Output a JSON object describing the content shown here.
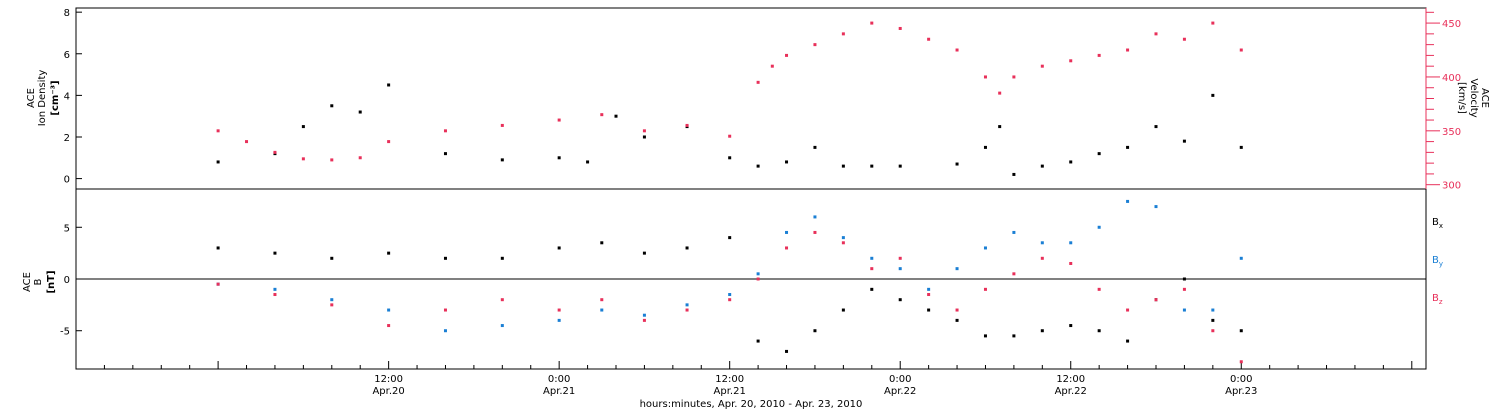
{
  "colors": {
    "black": "#000000",
    "pink": "#e8305a",
    "blue": "#1a7fd4"
  },
  "chart_data": [
    {
      "type": "scatter",
      "panel": "top",
      "xaxis": {
        "start": "2010-04-19 14:00",
        "end": "2010-04-23 13:00",
        "tick_labels": [
          {
            "time": "2010-04-20 12:00",
            "hm": "12:00",
            "date": "Apr.20"
          },
          {
            "time": "2010-04-21 00:00",
            "hm": "0:00",
            "date": "Apr.21"
          },
          {
            "time": "2010-04-21 12:00",
            "hm": "12:00",
            "date": "Apr.21"
          },
          {
            "time": "2010-04-22 00:00",
            "hm": "0:00",
            "date": "Apr.22"
          },
          {
            "time": "2010-04-22 12:00",
            "hm": "12:00",
            "date": "Apr.22"
          },
          {
            "time": "2010-04-23 00:00",
            "hm": "0:00",
            "date": "Apr.23"
          }
        ],
        "label": "hours:minutes, Apr. 20, 2010 - Apr. 23, 2010"
      },
      "y_left": {
        "label_line1": "ACE",
        "label_line2": "Ion Density",
        "unit": "[cm⁻³]",
        "range": [
          -0.5,
          8.2
        ],
        "ticks": [
          0,
          2,
          4,
          6,
          8
        ]
      },
      "y_right": {
        "label_line1": "ACE",
        "label_line2": "Velocity",
        "unit": "[km/s]",
        "range": [
          296,
          464
        ],
        "ticks": [
          300,
          350,
          400,
          450
        ]
      },
      "series": [
        {
          "color": "black",
          "axis": "left",
          "x": [
            "2010-04-20 00:00",
            "2010-04-20 04:00",
            "2010-04-20 06:00",
            "2010-04-20 08:00",
            "2010-04-20 10:00",
            "2010-04-20 12:00",
            "2010-04-20 16:00",
            "2010-04-20 20:00",
            "2010-04-21 00:00",
            "2010-04-21 02:00",
            "2010-04-21 04:00",
            "2010-04-21 06:00",
            "2010-04-21 09:00",
            "2010-04-21 12:00",
            "2010-04-21 14:00",
            "2010-04-21 16:00",
            "2010-04-21 18:00",
            "2010-04-21 20:00",
            "2010-04-21 22:00",
            "2010-04-22 00:00",
            "2010-04-22 04:00",
            "2010-04-22 06:00",
            "2010-04-22 07:00",
            "2010-04-22 08:00",
            "2010-04-22 10:00",
            "2010-04-22 12:00",
            "2010-04-22 14:00",
            "2010-04-22 16:00",
            "2010-04-22 18:00",
            "2010-04-22 20:00",
            "2010-04-22 22:00",
            "2010-04-23 00:00"
          ],
          "y": [
            0.8,
            1.2,
            2.5,
            3.5,
            3.2,
            4.5,
            1.2,
            0.9,
            1.0,
            0.8,
            3.0,
            2.0,
            2.5,
            1.0,
            0.6,
            0.8,
            1.5,
            0.6,
            0.6,
            0.6,
            0.7,
            1.5,
            2.5,
            0.2,
            0.6,
            0.8,
            1.2,
            1.5,
            2.5,
            1.8,
            4.0,
            1.5
          ]
        },
        {
          "color": "pink",
          "axis": "right",
          "x": [
            "2010-04-20 00:00",
            "2010-04-20 02:00",
            "2010-04-20 04:00",
            "2010-04-20 06:00",
            "2010-04-20 08:00",
            "2010-04-20 10:00",
            "2010-04-20 12:00",
            "2010-04-20 16:00",
            "2010-04-20 20:00",
            "2010-04-21 00:00",
            "2010-04-21 03:00",
            "2010-04-21 06:00",
            "2010-04-21 09:00",
            "2010-04-21 12:00",
            "2010-04-21 14:00",
            "2010-04-21 15:00",
            "2010-04-21 16:00",
            "2010-04-21 18:00",
            "2010-04-21 20:00",
            "2010-04-21 22:00",
            "2010-04-22 00:00",
            "2010-04-22 02:00",
            "2010-04-22 04:00",
            "2010-04-22 06:00",
            "2010-04-22 07:00",
            "2010-04-22 08:00",
            "2010-04-22 10:00",
            "2010-04-22 12:00",
            "2010-04-22 14:00",
            "2010-04-22 16:00",
            "2010-04-22 18:00",
            "2010-04-22 20:00",
            "2010-04-22 22:00",
            "2010-04-23 00:00"
          ],
          "y": [
            350,
            340,
            330,
            324,
            323,
            325,
            340,
            350,
            355,
            360,
            365,
            350,
            355,
            345,
            395,
            410,
            420,
            430,
            440,
            450,
            445,
            435,
            425,
            400,
            385,
            400,
            410,
            415,
            420,
            425,
            440,
            435,
            450,
            425
          ]
        }
      ]
    },
    {
      "type": "scatter",
      "panel": "bottom",
      "y_left": {
        "label_line1": "ACE",
        "label_line2": "B",
        "unit": "[nT]",
        "range": [
          -8.7,
          8.7
        ],
        "ticks": [
          -5,
          0,
          5
        ]
      },
      "zero_line": 0,
      "series": [
        {
          "name": "B",
          "subscript": "x",
          "color": "black",
          "x": [
            "2010-04-20 00:00",
            "2010-04-20 04:00",
            "2010-04-20 08:00",
            "2010-04-20 12:00",
            "2010-04-20 16:00",
            "2010-04-20 20:00",
            "2010-04-21 00:00",
            "2010-04-21 03:00",
            "2010-04-21 06:00",
            "2010-04-21 09:00",
            "2010-04-21 12:00",
            "2010-04-21 14:00",
            "2010-04-21 16:00",
            "2010-04-21 18:00",
            "2010-04-21 20:00",
            "2010-04-21 22:00",
            "2010-04-22 00:00",
            "2010-04-22 02:00",
            "2010-04-22 04:00",
            "2010-04-22 06:00",
            "2010-04-22 08:00",
            "2010-04-22 10:00",
            "2010-04-22 12:00",
            "2010-04-22 14:00",
            "2010-04-22 16:00",
            "2010-04-22 18:00",
            "2010-04-22 20:00",
            "2010-04-22 22:00",
            "2010-04-23 00:00"
          ],
          "y": [
            3.0,
            2.5,
            2.0,
            2.5,
            2.0,
            2.0,
            3.0,
            3.5,
            2.5,
            3.0,
            4.0,
            -6.0,
            -7.0,
            -5.0,
            -3.0,
            -1.0,
            -2.0,
            -3.0,
            -4.0,
            -5.5,
            -5.5,
            -5.0,
            -4.5,
            -5.0,
            -6.0,
            -2.0,
            0.0,
            -4.0,
            -5.0
          ]
        },
        {
          "name": "B",
          "subscript": "y",
          "color": "blue",
          "x": [
            "2010-04-20 00:00",
            "2010-04-20 04:00",
            "2010-04-20 08:00",
            "2010-04-20 12:00",
            "2010-04-20 16:00",
            "2010-04-20 20:00",
            "2010-04-21 00:00",
            "2010-04-21 03:00",
            "2010-04-21 06:00",
            "2010-04-21 09:00",
            "2010-04-21 12:00",
            "2010-04-21 14:00",
            "2010-04-21 16:00",
            "2010-04-21 18:00",
            "2010-04-21 20:00",
            "2010-04-21 22:00",
            "2010-04-22 00:00",
            "2010-04-22 02:00",
            "2010-04-22 04:00",
            "2010-04-22 06:00",
            "2010-04-22 08:00",
            "2010-04-22 10:00",
            "2010-04-22 12:00",
            "2010-04-22 14:00",
            "2010-04-22 16:00",
            "2010-04-22 18:00",
            "2010-04-22 20:00",
            "2010-04-22 22:00",
            "2010-04-23 00:00"
          ],
          "y": [
            -0.5,
            -1.0,
            -2.0,
            -3.0,
            -5.0,
            -4.5,
            -4.0,
            -3.0,
            -3.5,
            -2.5,
            -1.5,
            0.5,
            4.5,
            6.0,
            4.0,
            2.0,
            1.0,
            -1.0,
            1.0,
            3.0,
            4.5,
            3.5,
            3.5,
            5.0,
            7.5,
            7.0,
            -3.0,
            -3.0,
            2.0
          ]
        },
        {
          "name": "B",
          "subscript": "z",
          "color": "pink",
          "x": [
            "2010-04-20 00:00",
            "2010-04-20 04:00",
            "2010-04-20 08:00",
            "2010-04-20 12:00",
            "2010-04-20 16:00",
            "2010-04-20 20:00",
            "2010-04-21 00:00",
            "2010-04-21 03:00",
            "2010-04-21 06:00",
            "2010-04-21 09:00",
            "2010-04-21 12:00",
            "2010-04-21 14:00",
            "2010-04-21 16:00",
            "2010-04-21 18:00",
            "2010-04-21 20:00",
            "2010-04-21 22:00",
            "2010-04-22 00:00",
            "2010-04-22 02:00",
            "2010-04-22 04:00",
            "2010-04-22 06:00",
            "2010-04-22 08:00",
            "2010-04-22 10:00",
            "2010-04-22 12:00",
            "2010-04-22 14:00",
            "2010-04-22 16:00",
            "2010-04-22 18:00",
            "2010-04-22 20:00",
            "2010-04-22 22:00",
            "2010-04-23 00:00"
          ],
          "y": [
            -0.5,
            -1.5,
            -2.5,
            -4.5,
            -3.0,
            -2.0,
            -3.0,
            -2.0,
            -4.0,
            -3.0,
            -2.0,
            0.0,
            3.0,
            4.5,
            3.5,
            1.0,
            2.0,
            -1.5,
            -3.0,
            -1.0,
            0.5,
            2.0,
            1.5,
            -1.0,
            -3.0,
            -2.0,
            -1.0,
            -5.0,
            -8.0
          ]
        }
      ]
    }
  ]
}
